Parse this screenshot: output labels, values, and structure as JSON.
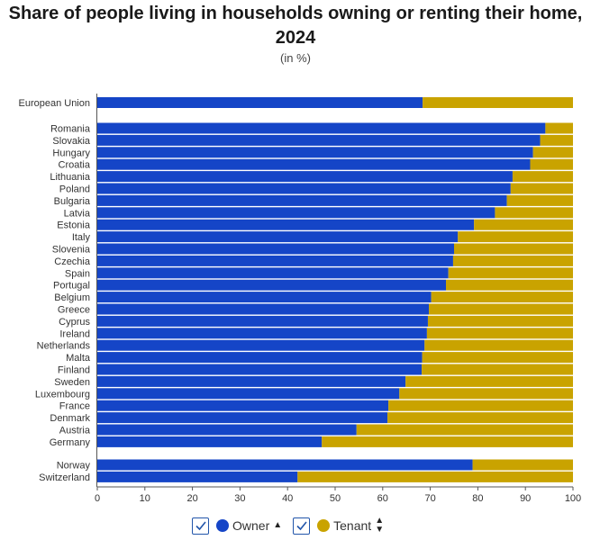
{
  "title": "Share of people living in households owning or renting their home, 2024",
  "subtitle": "(in %)",
  "colors": {
    "owner": "#1545c7",
    "tenant": "#c9a300"
  },
  "legend": [
    {
      "label": "Owner",
      "icon": "sort-up-icon"
    },
    {
      "label": "Tenant",
      "icon": "sort-up-down-icon"
    }
  ],
  "chart_data": {
    "type": "bar",
    "orientation": "horizontal",
    "stacked": true,
    "xlim": [
      0,
      100
    ],
    "x_ticks": [
      0,
      10,
      20,
      30,
      40,
      50,
      60,
      70,
      80,
      90,
      100
    ],
    "groups": [
      {
        "categories": [
          "European Union"
        ],
        "owner": [
          68.4
        ]
      },
      {
        "categories": [
          "Romania",
          "Slovakia",
          "Hungary",
          "Croatia",
          "Lithuania",
          "Poland",
          "Bulgaria",
          "Latvia",
          "Estonia",
          "Italy",
          "Slovenia",
          "Czechia",
          "Spain",
          "Portugal",
          "Belgium",
          "Greece",
          "Cyprus",
          "Ireland",
          "Netherlands",
          "Malta",
          "Finland",
          "Sweden",
          "Luxembourg",
          "France",
          "Denmark",
          "Austria",
          "Germany"
        ],
        "owner": [
          94.2,
          93.1,
          91.6,
          91.0,
          87.3,
          86.9,
          86.1,
          83.6,
          79.2,
          75.8,
          75.0,
          74.8,
          73.8,
          73.3,
          70.2,
          69.7,
          69.5,
          69.3,
          68.8,
          68.3,
          68.2,
          64.8,
          63.5,
          61.2,
          61.0,
          54.5,
          47.2
        ]
      },
      {
        "categories": [
          "Norway",
          "Switzerland"
        ],
        "owner": [
          78.9,
          42.1
        ]
      }
    ],
    "series": [
      {
        "name": "Owner"
      },
      {
        "name": "Tenant"
      }
    ]
  }
}
